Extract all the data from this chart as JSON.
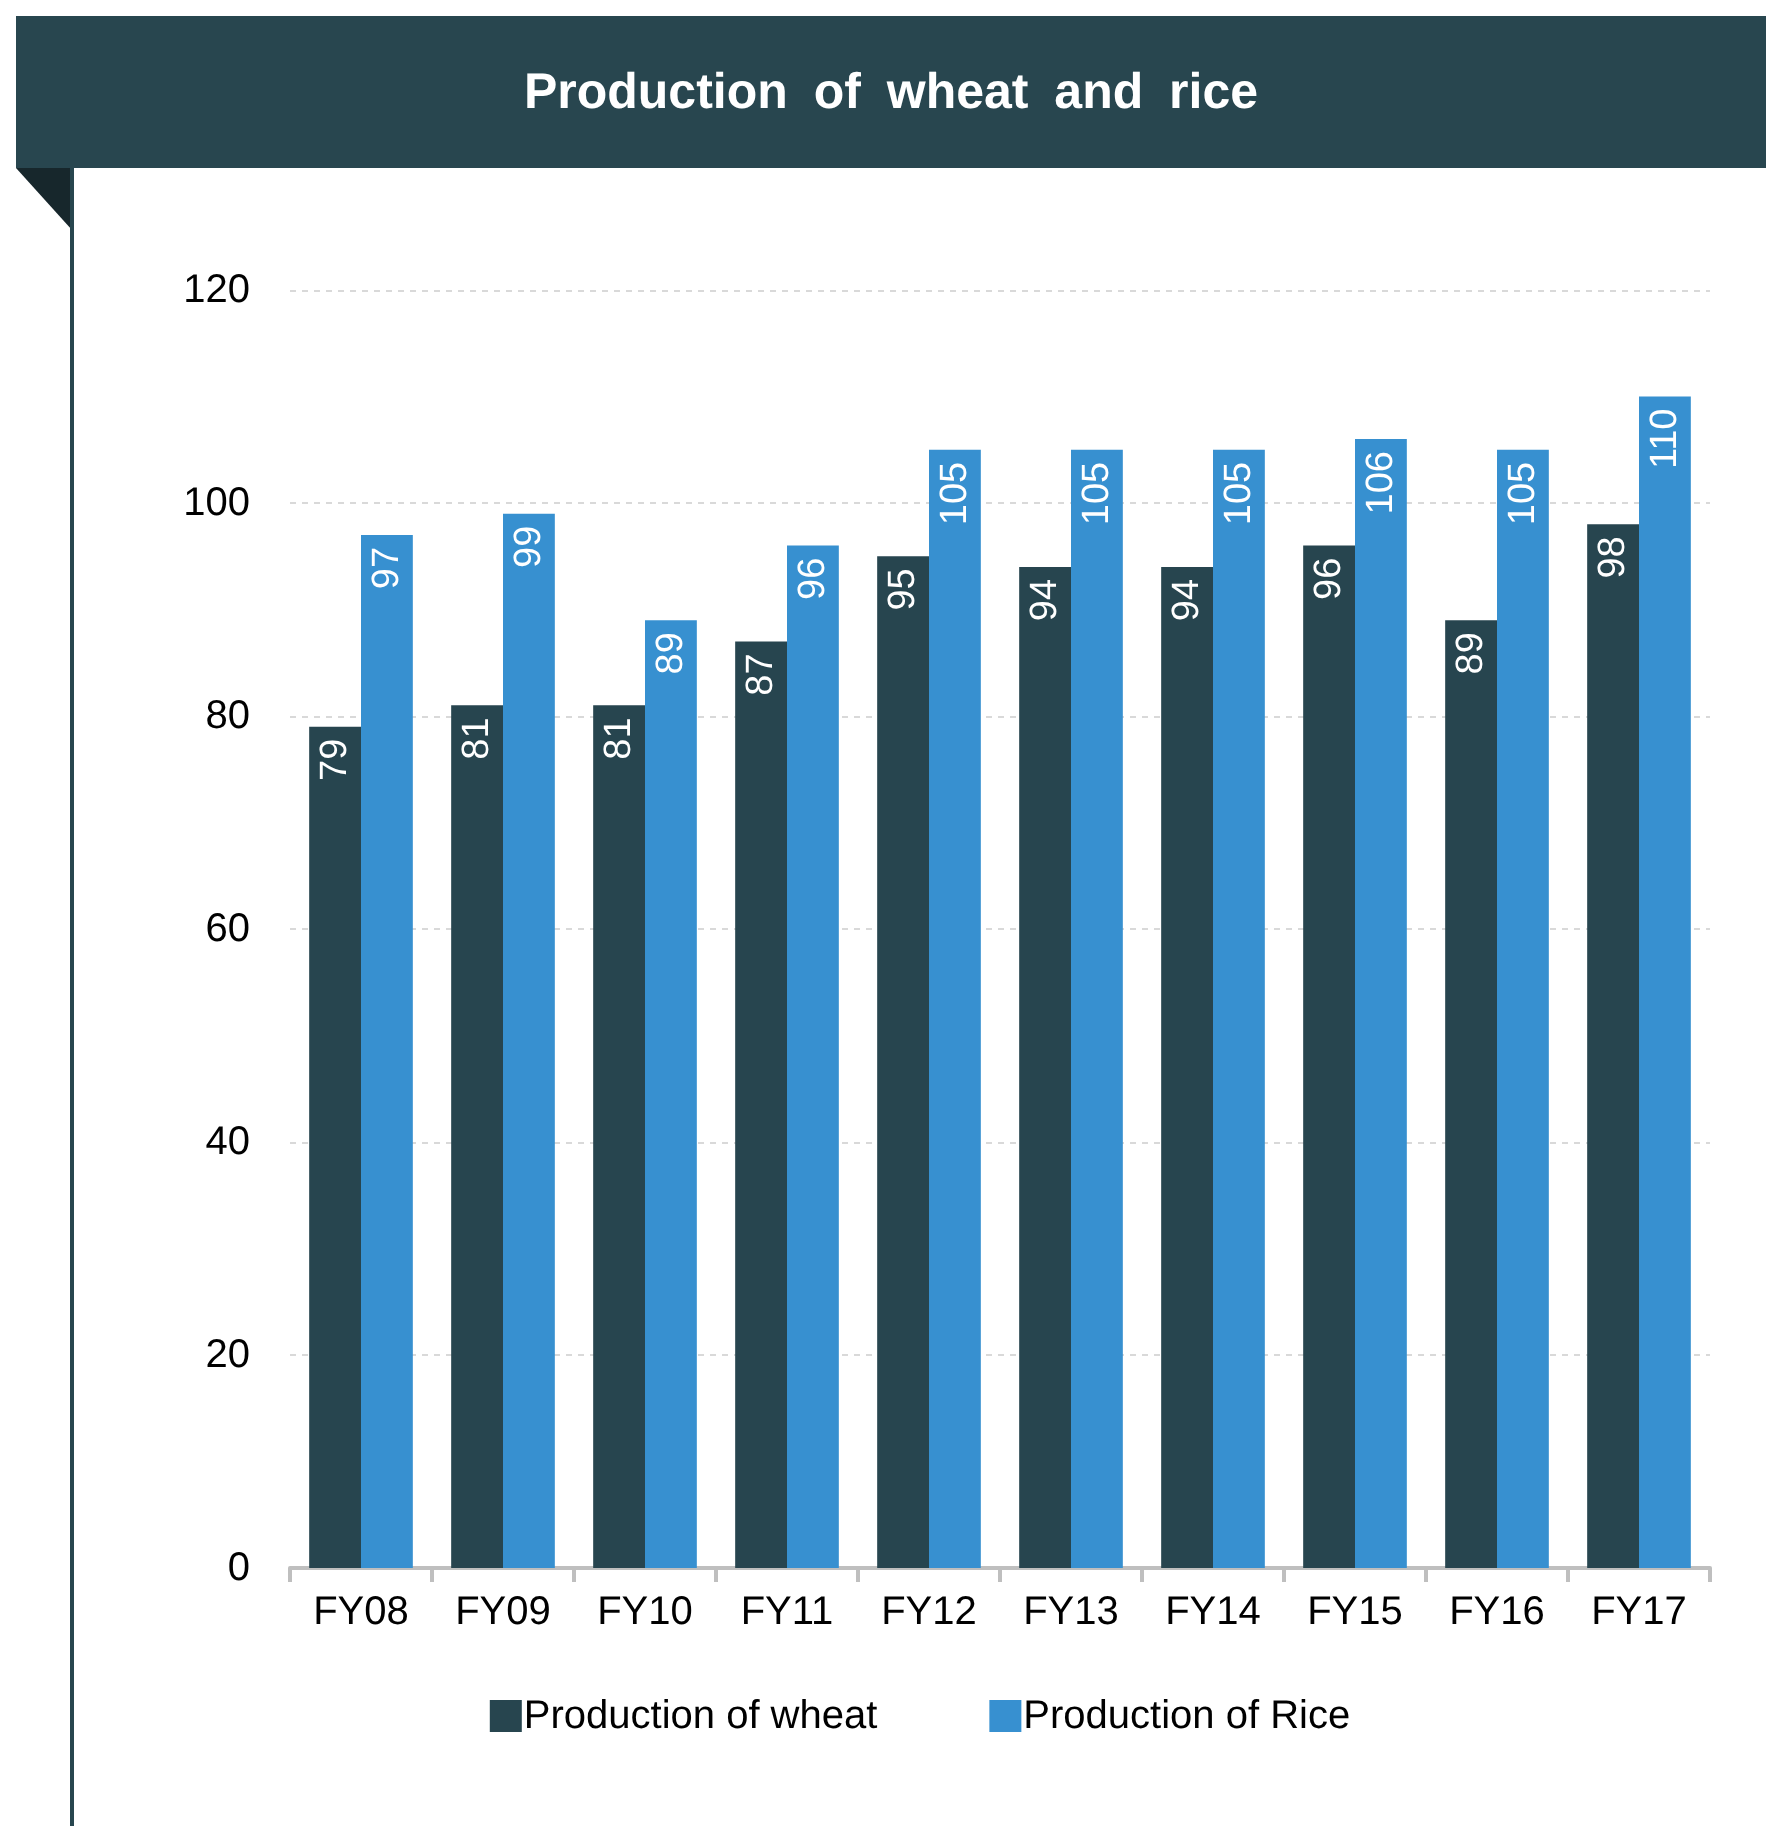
{
  "chart_data": {
    "type": "bar",
    "title": "Production of wheat and rice",
    "categories": [
      "FY08",
      "FY09",
      "FY10",
      "FY11",
      "FY12",
      "FY13",
      "FY14",
      "FY15",
      "FY16",
      "FY17"
    ],
    "series": [
      {
        "name": "Production of wheat",
        "color": "#27454f",
        "values": [
          79,
          81,
          81,
          87,
          95,
          94,
          94,
          96,
          89,
          98
        ]
      },
      {
        "name": "Production of Rice",
        "color": "#3790d0",
        "values": [
          97,
          99,
          89,
          96,
          105,
          105,
          105,
          106,
          105,
          110
        ]
      }
    ],
    "ylim": [
      0,
      120
    ],
    "yticks": [
      0,
      20,
      40,
      60,
      80,
      100,
      120
    ],
    "grid": "y",
    "legend": "bottom",
    "data_labels": true
  }
}
